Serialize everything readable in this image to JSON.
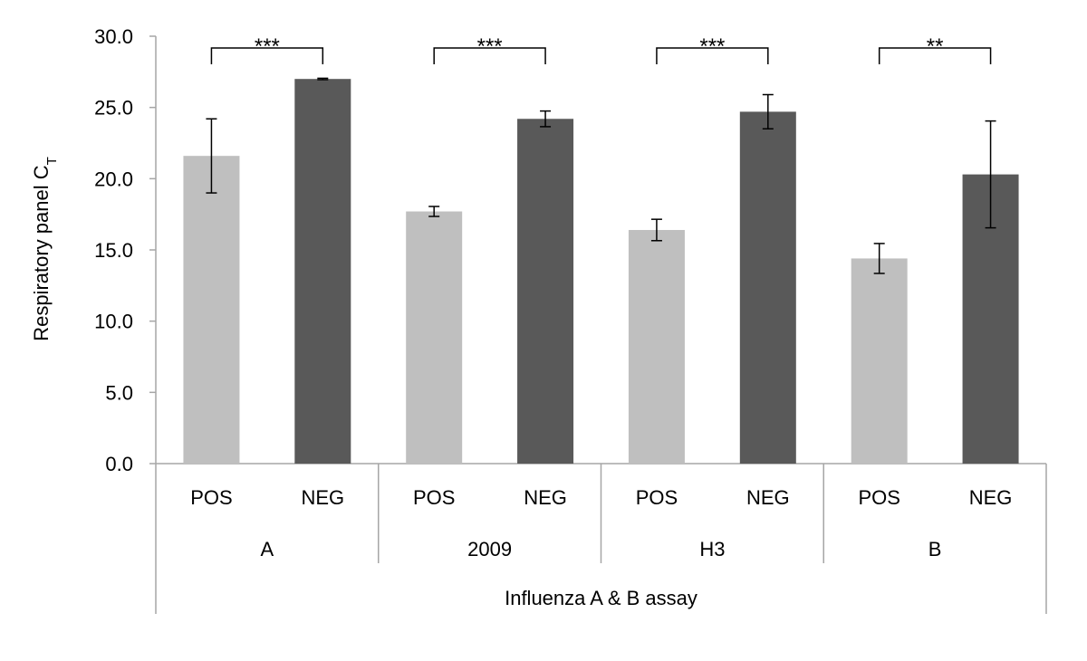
{
  "chart_data": {
    "type": "bar",
    "title": "",
    "ylabel_main": "Respiratory panel C",
    "ylabel_sub": "T",
    "xlabel": "Influenza A & B assay",
    "ylim": [
      0,
      30
    ],
    "yticks": [
      "0.0",
      "5.0",
      "10.0",
      "15.0",
      "20.0",
      "25.0",
      "30.0"
    ],
    "grid": false,
    "colors": {
      "POS": "#bfbfbf",
      "NEG": "#595959",
      "axis": "#a6a6a6",
      "bracket": "#000000"
    },
    "groups": [
      {
        "label": "A",
        "significance": "***",
        "bars": [
          {
            "category": "POS",
            "value": 21.6,
            "error": 2.6
          },
          {
            "category": "NEG",
            "value": 27.0,
            "error": 0.05
          }
        ]
      },
      {
        "label": "2009",
        "significance": "***",
        "bars": [
          {
            "category": "POS",
            "value": 17.7,
            "error": 0.35
          },
          {
            "category": "NEG",
            "value": 24.2,
            "error": 0.55
          }
        ]
      },
      {
        "label": "H3",
        "significance": "***",
        "bars": [
          {
            "category": "POS",
            "value": 16.4,
            "error": 0.75
          },
          {
            "category": "NEG",
            "value": 24.7,
            "error": 1.2
          }
        ]
      },
      {
        "label": "B",
        "significance": "**",
        "bars": [
          {
            "category": "POS",
            "value": 14.4,
            "error": 1.05
          },
          {
            "category": "NEG",
            "value": 20.3,
            "error": 3.75
          }
        ]
      }
    ]
  }
}
